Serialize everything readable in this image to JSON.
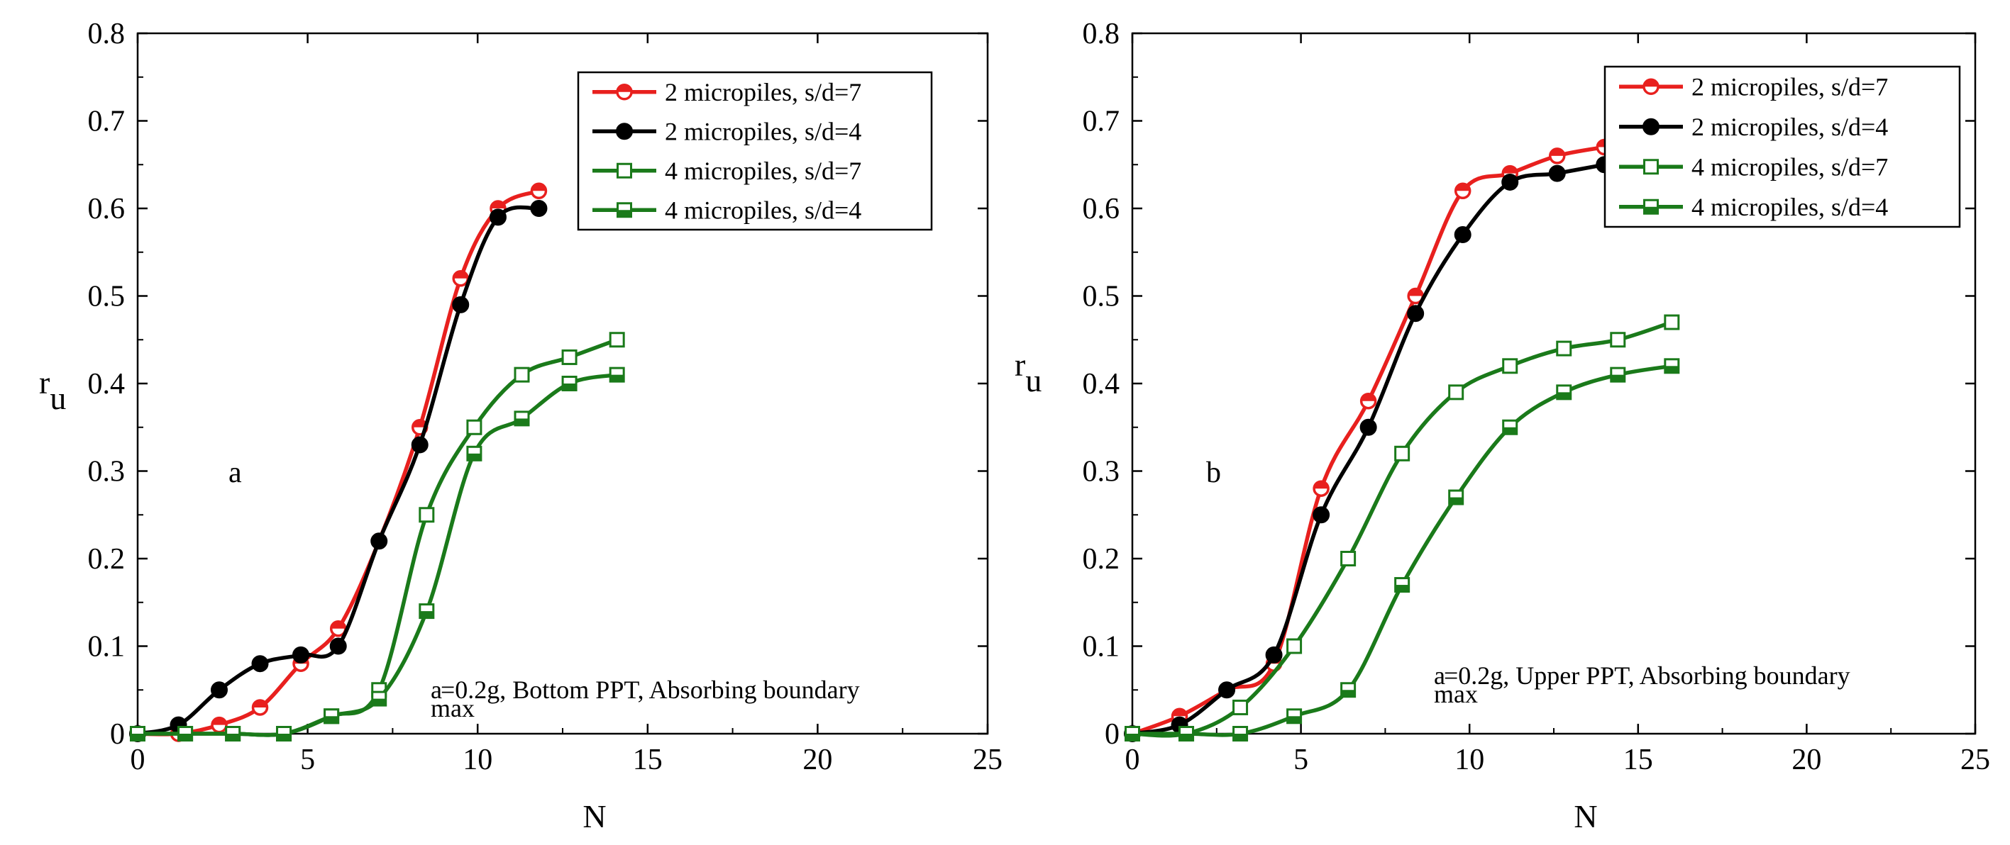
{
  "chart_data": [
    {
      "type": "line",
      "panel_letter": "a",
      "xlabel": "N",
      "ylabel": "r",
      "ylabel_sub": "u",
      "xlim": [
        0,
        25
      ],
      "ylim": [
        0,
        0.8
      ],
      "x_ticks": [
        "0",
        "5",
        "10",
        "15",
        "20",
        "25"
      ],
      "y_ticks": [
        "0",
        "0.1",
        "0.2",
        "0.3",
        "0.4",
        "0.5",
        "0.6",
        "0.7",
        "0.8"
      ],
      "grid": false,
      "legend_position": "top-right",
      "annotation": "a",
      "annotation_sub": "max",
      "annotation_rest": "=0.2g, Bottom PPT, Absorbing boundary",
      "series": [
        {
          "name": "2 micropiles, s/d=7",
          "color": "#e8201e",
          "marker": "circle-half",
          "points": [
            [
              0,
              0
            ],
            [
              1.2,
              0
            ],
            [
              2.4,
              0.01
            ],
            [
              3.6,
              0.03
            ],
            [
              4.8,
              0.08
            ],
            [
              5.9,
              0.12
            ],
            [
              7.1,
              0.22
            ],
            [
              8.3,
              0.35
            ],
            [
              9.5,
              0.52
            ],
            [
              10.6,
              0.6
            ],
            [
              11.8,
              0.62
            ]
          ]
        },
        {
          "name": "2 micropiles, s/d=4",
          "color": "#000000",
          "marker": "circle-filled",
          "points": [
            [
              0,
              0
            ],
            [
              1.2,
              0.01
            ],
            [
              2.4,
              0.05
            ],
            [
              3.6,
              0.08
            ],
            [
              4.8,
              0.09
            ],
            [
              5.9,
              0.1
            ],
            [
              7.1,
              0.22
            ],
            [
              8.3,
              0.33
            ],
            [
              9.5,
              0.49
            ],
            [
              10.6,
              0.59
            ],
            [
              11.8,
              0.6
            ]
          ]
        },
        {
          "name": "4 micropiles, s/d=7",
          "color": "#1a7a1a",
          "marker": "square-open",
          "points": [
            [
              0,
              0
            ],
            [
              1.4,
              0
            ],
            [
              2.8,
              0
            ],
            [
              4.3,
              0
            ],
            [
              5.7,
              0.02
            ],
            [
              7.1,
              0.05
            ],
            [
              8.5,
              0.25
            ],
            [
              9.9,
              0.35
            ],
            [
              11.3,
              0.41
            ],
            [
              12.7,
              0.43
            ],
            [
              14.1,
              0.45
            ]
          ]
        },
        {
          "name": "4 micropiles, s/d=4",
          "color": "#1a7a1a",
          "marker": "square-half",
          "points": [
            [
              0,
              0
            ],
            [
              1.4,
              0
            ],
            [
              2.8,
              0
            ],
            [
              4.3,
              0
            ],
            [
              5.7,
              0.02
            ],
            [
              7.1,
              0.04
            ],
            [
              8.5,
              0.14
            ],
            [
              9.9,
              0.32
            ],
            [
              11.3,
              0.36
            ],
            [
              12.7,
              0.4
            ],
            [
              14.1,
              0.41
            ]
          ]
        }
      ]
    },
    {
      "type": "line",
      "panel_letter": "b",
      "xlabel": "N",
      "ylabel": "r",
      "ylabel_sub": "u",
      "xlim": [
        0,
        25
      ],
      "ylim": [
        0,
        0.8
      ],
      "x_ticks": [
        "0",
        "5",
        "10",
        "15",
        "20",
        "25"
      ],
      "y_ticks": [
        "0",
        "0.1",
        "0.2",
        "0.3",
        "0.4",
        "0.5",
        "0.6",
        "0.7",
        "0.8"
      ],
      "grid": false,
      "legend_position": "top-right",
      "annotation": "a",
      "annotation_sub": "max",
      "annotation_rest": "=0.2g,  Upper PPT, Absorbing boundary",
      "series": [
        {
          "name": "2 micropiles, s/d=7",
          "color": "#e8201e",
          "marker": "circle-half",
          "points": [
            [
              0,
              0
            ],
            [
              1.4,
              0.02
            ],
            [
              2.8,
              0.05
            ],
            [
              4.2,
              0.08
            ],
            [
              5.6,
              0.28
            ],
            [
              7,
              0.38
            ],
            [
              8.4,
              0.5
            ],
            [
              9.8,
              0.62
            ],
            [
              11.2,
              0.64
            ],
            [
              12.6,
              0.66
            ],
            [
              14,
              0.67
            ]
          ]
        },
        {
          "name": "2 micropiles, s/d=4",
          "color": "#000000",
          "marker": "circle-filled",
          "points": [
            [
              0,
              0
            ],
            [
              1.4,
              0.01
            ],
            [
              2.8,
              0.05
            ],
            [
              4.2,
              0.09
            ],
            [
              5.6,
              0.25
            ],
            [
              7,
              0.35
            ],
            [
              8.4,
              0.48
            ],
            [
              9.8,
              0.57
            ],
            [
              11.2,
              0.63
            ],
            [
              12.6,
              0.64
            ],
            [
              14,
              0.65
            ]
          ]
        },
        {
          "name": "4 micropiles, s/d=7",
          "color": "#1a7a1a",
          "marker": "square-open",
          "points": [
            [
              0,
              0
            ],
            [
              1.6,
              0
            ],
            [
              3.2,
              0.03
            ],
            [
              4.8,
              0.1
            ],
            [
              6.4,
              0.2
            ],
            [
              8,
              0.32
            ],
            [
              9.6,
              0.39
            ],
            [
              11.2,
              0.42
            ],
            [
              12.8,
              0.44
            ],
            [
              14.4,
              0.45
            ],
            [
              16,
              0.47
            ]
          ]
        },
        {
          "name": "4 micropiles, s/d=4",
          "color": "#1a7a1a",
          "marker": "square-half",
          "points": [
            [
              0,
              0
            ],
            [
              1.6,
              0
            ],
            [
              3.2,
              0
            ],
            [
              4.8,
              0.02
            ],
            [
              6.4,
              0.05
            ],
            [
              8,
              0.17
            ],
            [
              9.6,
              0.27
            ],
            [
              11.2,
              0.35
            ],
            [
              12.8,
              0.39
            ],
            [
              14.4,
              0.41
            ],
            [
              16,
              0.42
            ]
          ]
        }
      ]
    }
  ]
}
